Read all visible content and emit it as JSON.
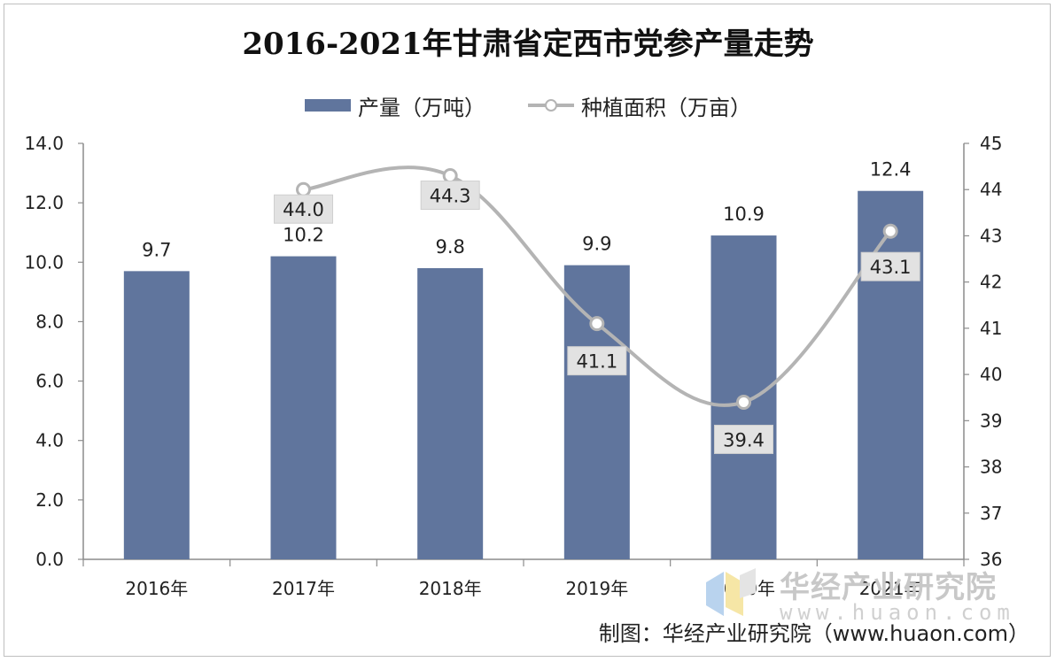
{
  "chart_data": {
    "type": "bar+line",
    "title": "2016-2021年甘肃省定西市党参产量走势",
    "categories": [
      "2016年",
      "2017年",
      "2018年",
      "2019年",
      "2020年",
      "2021年"
    ],
    "series": [
      {
        "name": "产量（万吨）",
        "type": "bar",
        "axis": "left",
        "values": [
          9.7,
          10.2,
          9.8,
          9.9,
          10.9,
          12.4
        ],
        "labels": [
          "9.7",
          "10.2",
          "9.8",
          "9.9",
          "10.9",
          "12.4"
        ],
        "color": "#60759d"
      },
      {
        "name": "种植面积（万亩）",
        "type": "line",
        "axis": "right",
        "values": [
          null,
          44.0,
          44.3,
          41.1,
          39.4,
          43.1
        ],
        "labels": [
          "",
          "44.0",
          "44.3",
          "41.1",
          "39.4",
          "43.1"
        ],
        "color": "#b4b4b4"
      }
    ],
    "y_left": {
      "min": 0,
      "max": 14,
      "ticks": [
        "0.0",
        "2.0",
        "4.0",
        "6.0",
        "8.0",
        "10.0",
        "12.0",
        "14.0"
      ]
    },
    "y_right": {
      "min": 36,
      "max": 45,
      "ticks": [
        "36",
        "37",
        "38",
        "39",
        "40",
        "41",
        "42",
        "43",
        "44",
        "45"
      ]
    },
    "legend_position": "top-center",
    "grid": false
  },
  "watermark": {
    "brand": "华经产业研究院",
    "url": "www.huaon.com"
  },
  "source_text": "制图：华经产业研究院（www.huaon.com）"
}
